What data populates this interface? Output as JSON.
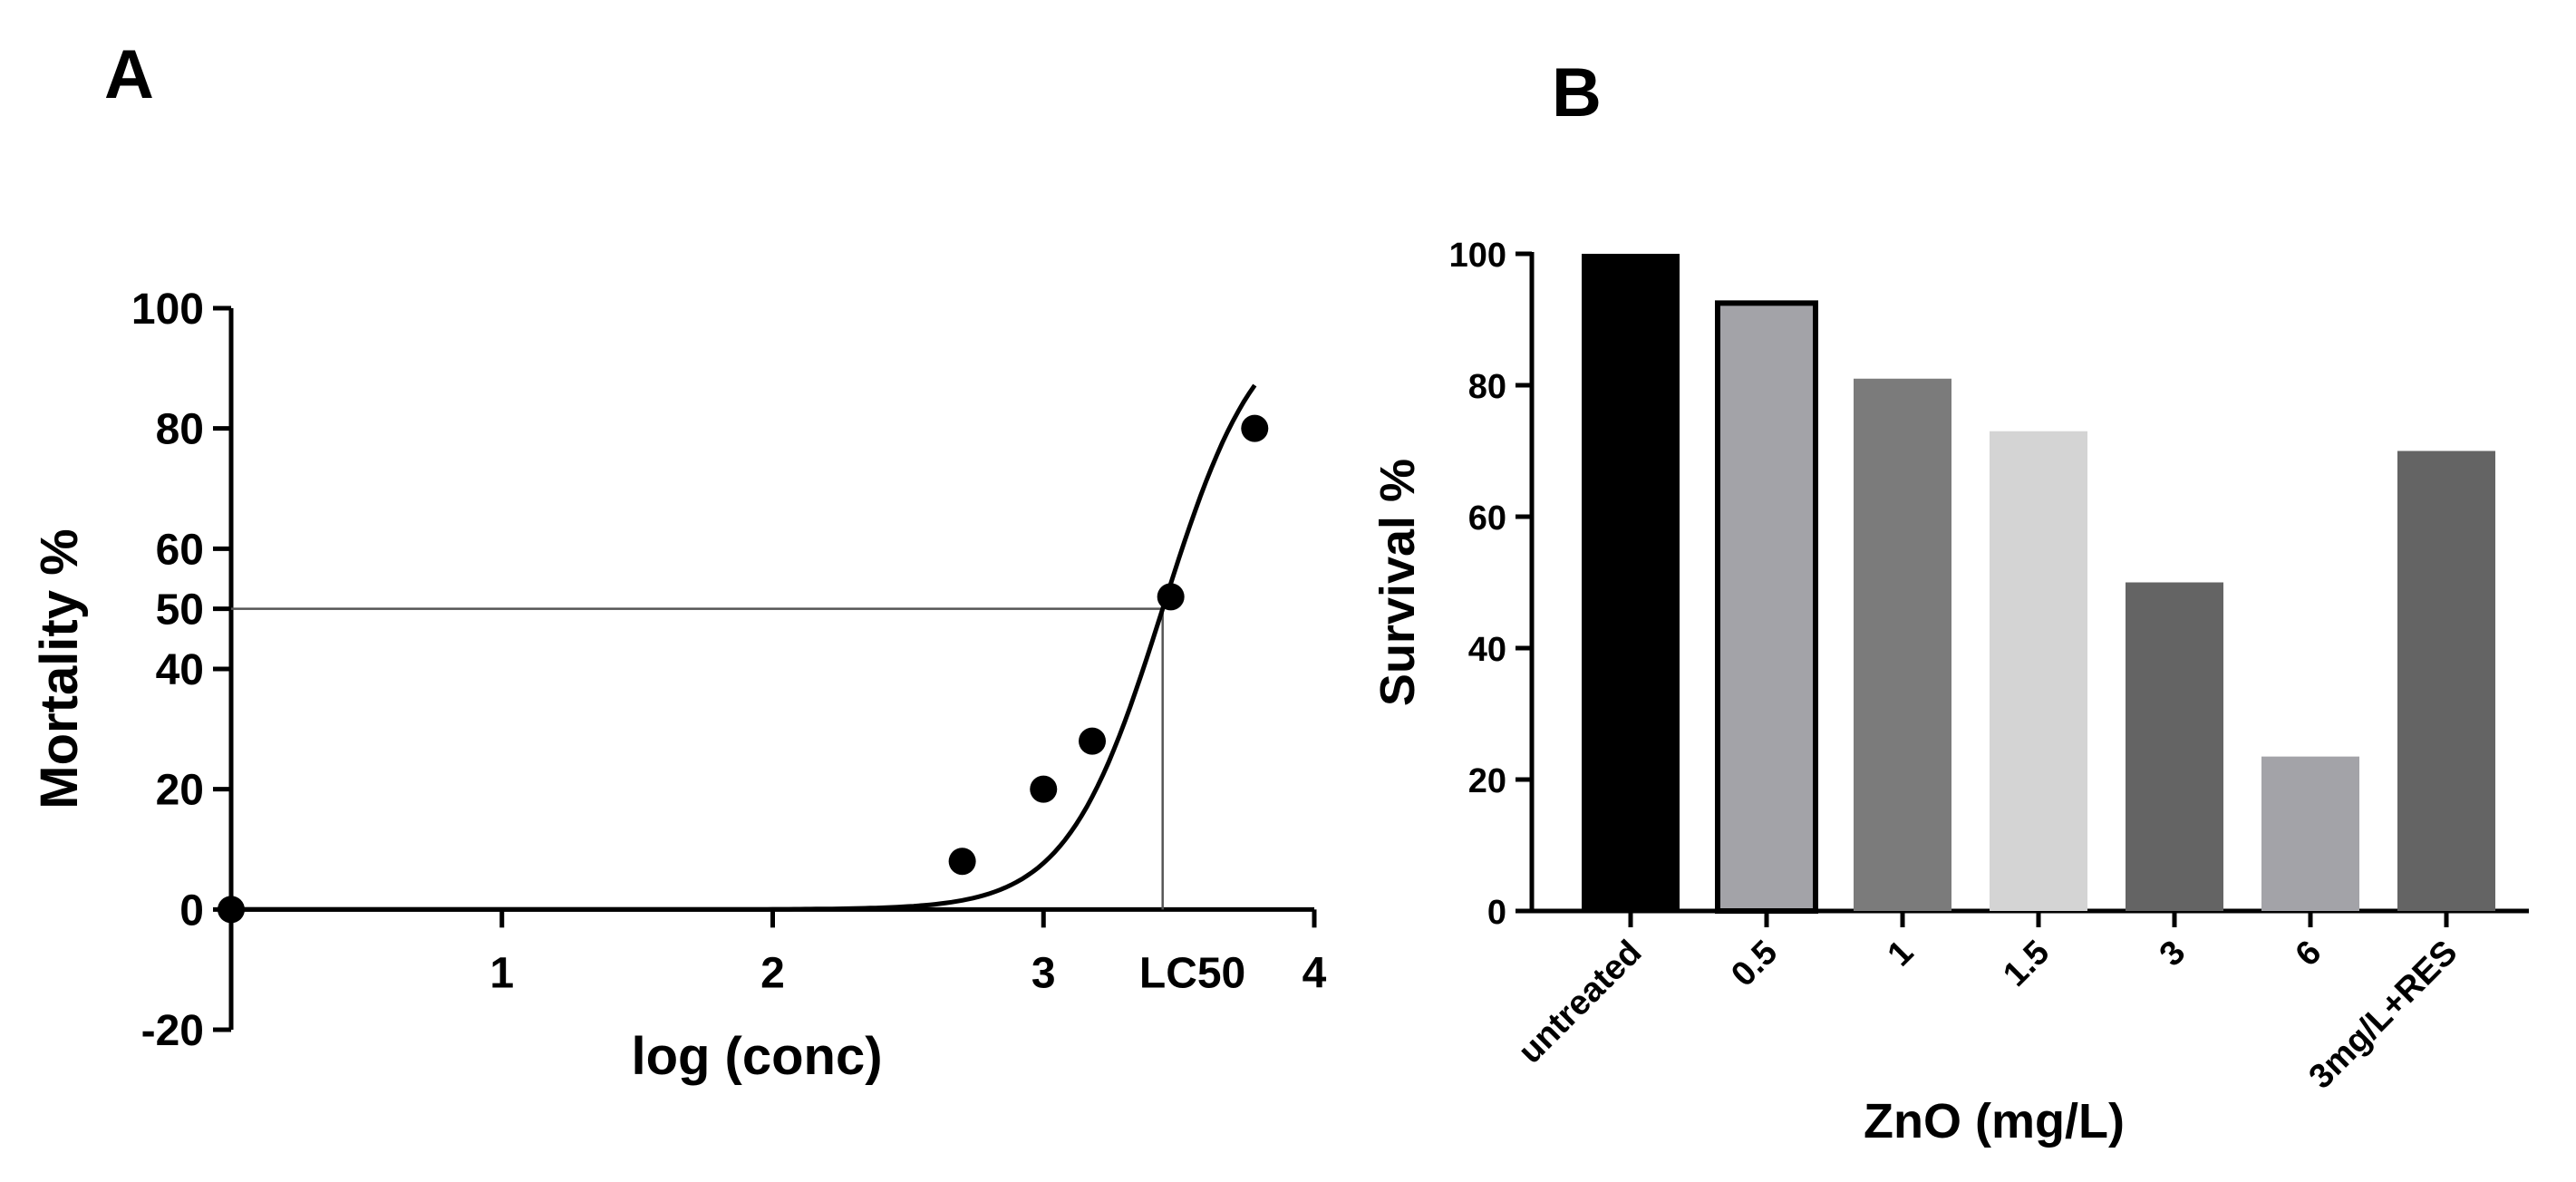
{
  "panels": {
    "a_label": "A",
    "b_label": "B"
  },
  "chart_data": [
    {
      "type": "scatter",
      "panel": "A",
      "xlabel": "log (conc)",
      "ylabel": "Mortality %",
      "xlim": [
        0,
        4
      ],
      "ylim": [
        -20,
        100
      ],
      "x_ticks": [
        {
          "value": 1,
          "label": "1"
        },
        {
          "value": 2,
          "label": "2"
        },
        {
          "value": 3,
          "label": "3"
        },
        {
          "value": 4,
          "label": "4"
        }
      ],
      "y_ticks": [
        {
          "value": -20,
          "label": "-20"
        },
        {
          "value": 0,
          "label": "0"
        },
        {
          "value": 20,
          "label": "20"
        },
        {
          "value": 40,
          "label": "40"
        },
        {
          "value": 50,
          "label": "50"
        },
        {
          "value": 60,
          "label": "60"
        },
        {
          "value": 80,
          "label": "80"
        },
        {
          "value": 100,
          "label": "100"
        }
      ],
      "points": [
        {
          "x": 0.0,
          "y": 0
        },
        {
          "x": 2.7,
          "y": 8
        },
        {
          "x": 3.0,
          "y": 20
        },
        {
          "x": 3.18,
          "y": 28
        },
        {
          "x": 3.47,
          "y": 52
        },
        {
          "x": 3.78,
          "y": 80
        }
      ],
      "fit_curve": "sigmoidal dose-response",
      "lc50": {
        "x": 3.44,
        "y": 50,
        "label": "LC50"
      }
    },
    {
      "type": "bar",
      "panel": "B",
      "xlabel": "ZnO (mg/L)",
      "ylabel": "Survival %",
      "ylim": [
        0,
        100
      ],
      "y_ticks": [
        0,
        20,
        40,
        60,
        80,
        100
      ],
      "categories": [
        "untreated",
        "0.5",
        "1",
        "1.5",
        "3",
        "6",
        "3mg/L+RES"
      ],
      "values": [
        100,
        92.5,
        81,
        73,
        50,
        23.5,
        70
      ],
      "colors": [
        "#000000",
        "#a3a3a8",
        "#7b7b7b",
        "#d4d4d4",
        "#646464",
        "#a3a3a8",
        "#646464"
      ],
      "outlined": [
        false,
        true,
        false,
        false,
        false,
        false,
        false
      ]
    }
  ]
}
